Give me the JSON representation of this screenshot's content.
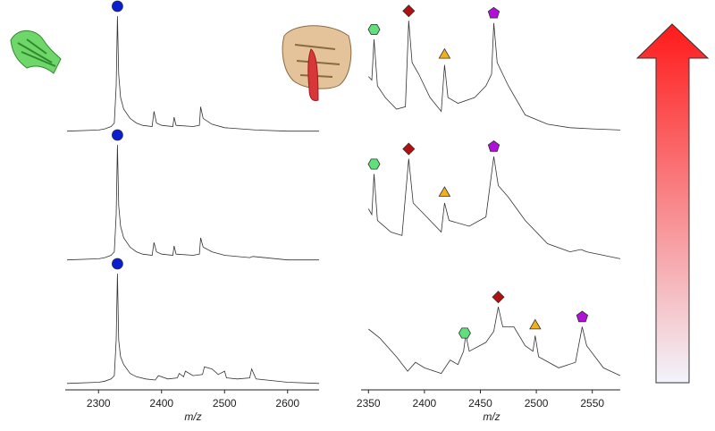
{
  "chart_data": [
    {
      "type": "line",
      "xlabel": "m/z",
      "xlim": [
        2250,
        2650
      ],
      "xticks": [
        2300,
        2400,
        2500,
        2600
      ],
      "series": [
        {
          "color": "#333333",
          "x": [
            2250,
            2300,
            2310,
            2320,
            2325,
            2328,
            2330,
            2332,
            2335,
            2340,
            2350,
            2360,
            2370,
            2385,
            2388,
            2392,
            2400,
            2418,
            2420,
            2423,
            2450,
            2460,
            2462,
            2466,
            2480,
            2500,
            2550,
            2600,
            2650
          ],
          "values": [
            1,
            2,
            3,
            5,
            8,
            40,
            100,
            50,
            30,
            20,
            12,
            8,
            6,
            5,
            18,
            8,
            6,
            5,
            13,
            6,
            5,
            6,
            22,
            12,
            7,
            4,
            2,
            1,
            1
          ],
          "markers": [
            {
              "x": 2330,
              "shape": "circle",
              "color": "#0a1fd0"
            }
          ]
        },
        {
          "color": "#333333",
          "x": [
            2250,
            2300,
            2310,
            2320,
            2325,
            2328,
            2330,
            2332,
            2335,
            2340,
            2350,
            2360,
            2370,
            2385,
            2388,
            2392,
            2400,
            2418,
            2420,
            2423,
            2450,
            2460,
            2462,
            2466,
            2480,
            2500,
            2540,
            2545,
            2600,
            2650
          ],
          "values": [
            1,
            2,
            3,
            5,
            8,
            40,
            100,
            48,
            30,
            20,
            12,
            8,
            6,
            5,
            16,
            8,
            6,
            5,
            13,
            6,
            5,
            6,
            20,
            12,
            8,
            5,
            3,
            4,
            1,
            1
          ],
          "markers": [
            {
              "x": 2330,
              "shape": "circle",
              "color": "#0a1fd0"
            }
          ]
        },
        {
          "color": "#333333",
          "x": [
            2250,
            2300,
            2310,
            2320,
            2325,
            2328,
            2330,
            2332,
            2335,
            2340,
            2350,
            2360,
            2375,
            2390,
            2395,
            2410,
            2425,
            2428,
            2435,
            2438,
            2450,
            2465,
            2468,
            2480,
            2490,
            2500,
            2503,
            2520,
            2540,
            2543,
            2550,
            2600,
            2650
          ],
          "values": [
            1,
            2,
            3,
            5,
            8,
            40,
            100,
            40,
            25,
            18,
            10,
            7,
            5,
            4,
            8,
            5,
            6,
            10,
            7,
            12,
            8,
            9,
            16,
            14,
            9,
            12,
            6,
            5,
            6,
            14,
            5,
            2,
            1
          ],
          "markers": [
            {
              "x": 2330,
              "shape": "circle",
              "color": "#0a1fd0"
            }
          ]
        }
      ]
    },
    {
      "type": "line",
      "xlabel": "m/z",
      "xlim": [
        2345,
        2575
      ],
      "xticks": [
        2350,
        2400,
        2450,
        2500,
        2550
      ],
      "series": [
        {
          "color": "#333333",
          "x": [
            2350,
            2353,
            2355,
            2358,
            2365,
            2375,
            2383,
            2386,
            2389,
            2395,
            2405,
            2415,
            2418,
            2421,
            2430,
            2445,
            2455,
            2460,
            2462,
            2465,
            2475,
            2490,
            2510,
            2530,
            2550,
            2575
          ],
          "values": [
            48,
            45,
            80,
            40,
            30,
            20,
            22,
            96,
            60,
            50,
            30,
            18,
            58,
            30,
            25,
            30,
            40,
            50,
            94,
            60,
            40,
            15,
            7,
            4,
            3,
            2
          ],
          "markers": [
            {
              "x": 2355,
              "shape": "hexagon",
              "color": "#5fe07a"
            },
            {
              "x": 2386,
              "shape": "diamond",
              "color": "#b01010"
            },
            {
              "x": 2418,
              "shape": "triangle",
              "color": "#f2b01c"
            },
            {
              "x": 2462,
              "shape": "pentagon",
              "color": "#b010d8"
            }
          ]
        },
        {
          "color": "#333333",
          "x": [
            2350,
            2353,
            2355,
            2358,
            2370,
            2380,
            2386,
            2390,
            2400,
            2415,
            2418,
            2422,
            2440,
            2455,
            2462,
            2466,
            2475,
            2490,
            2510,
            2530,
            2540,
            2545,
            2575
          ],
          "values": [
            45,
            40,
            75,
            35,
            25,
            22,
            88,
            50,
            40,
            25,
            50,
            35,
            30,
            38,
            90,
            65,
            55,
            35,
            15,
            8,
            10,
            8,
            2
          ],
          "markers": [
            {
              "x": 2355,
              "shape": "hexagon",
              "color": "#5fe07a"
            },
            {
              "x": 2386,
              "shape": "diamond",
              "color": "#b01010"
            },
            {
              "x": 2418,
              "shape": "triangle",
              "color": "#f2b01c"
            },
            {
              "x": 2462,
              "shape": "pentagon",
              "color": "#b010d8"
            }
          ]
        },
        {
          "color": "#333333",
          "x": [
            2350,
            2360,
            2375,
            2385,
            2392,
            2400,
            2415,
            2423,
            2430,
            2435,
            2437,
            2440,
            2455,
            2462,
            2466,
            2470,
            2480,
            2490,
            2497,
            2499,
            2502,
            2520,
            2535,
            2541,
            2545,
            2560,
            2575
          ],
          "values": [
            50,
            42,
            25,
            12,
            20,
            15,
            10,
            22,
            18,
            30,
            45,
            30,
            38,
            48,
            70,
            52,
            52,
            35,
            30,
            44,
            25,
            15,
            20,
            52,
            35,
            15,
            8
          ],
          "markers": [
            {
              "x": 2436,
              "shape": "hexagon",
              "color": "#5fe07a"
            },
            {
              "x": 2466,
              "shape": "diamond",
              "color": "#b01010"
            },
            {
              "x": 2499,
              "shape": "triangle",
              "color": "#f2b01c"
            },
            {
              "x": 2541,
              "shape": "pentagon",
              "color": "#b010d8"
            }
          ]
        }
      ]
    }
  ]
}
